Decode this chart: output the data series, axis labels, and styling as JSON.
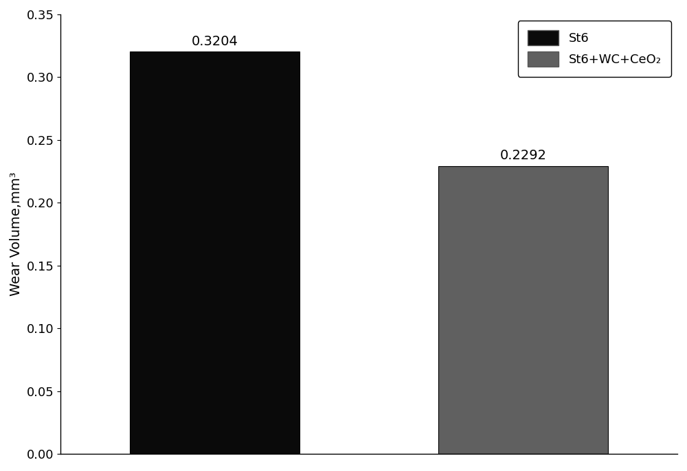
{
  "categories": [
    "St6",
    "St6+WC+CeO2"
  ],
  "values": [
    0.3204,
    0.2292
  ],
  "bar_colors": [
    "#0a0a0a",
    "#606060"
  ],
  "bar_labels": [
    "0.3204",
    "0.2292"
  ],
  "legend_labels": [
    "St6",
    "St6+WC+CeO₂"
  ],
  "ylabel": "Wear Volume,mm³",
  "ylim": [
    0.0,
    0.35
  ],
  "yticks": [
    0.0,
    0.05,
    0.1,
    0.15,
    0.2,
    0.25,
    0.3,
    0.35
  ],
  "bar_width": 0.55,
  "bar_positions": [
    1,
    2
  ],
  "xlim": [
    0.5,
    2.5
  ],
  "label_fontsize": 14,
  "tick_fontsize": 13,
  "legend_fontsize": 13,
  "value_fontsize": 14,
  "background_color": "#ffffff",
  "edge_color": "#000000"
}
